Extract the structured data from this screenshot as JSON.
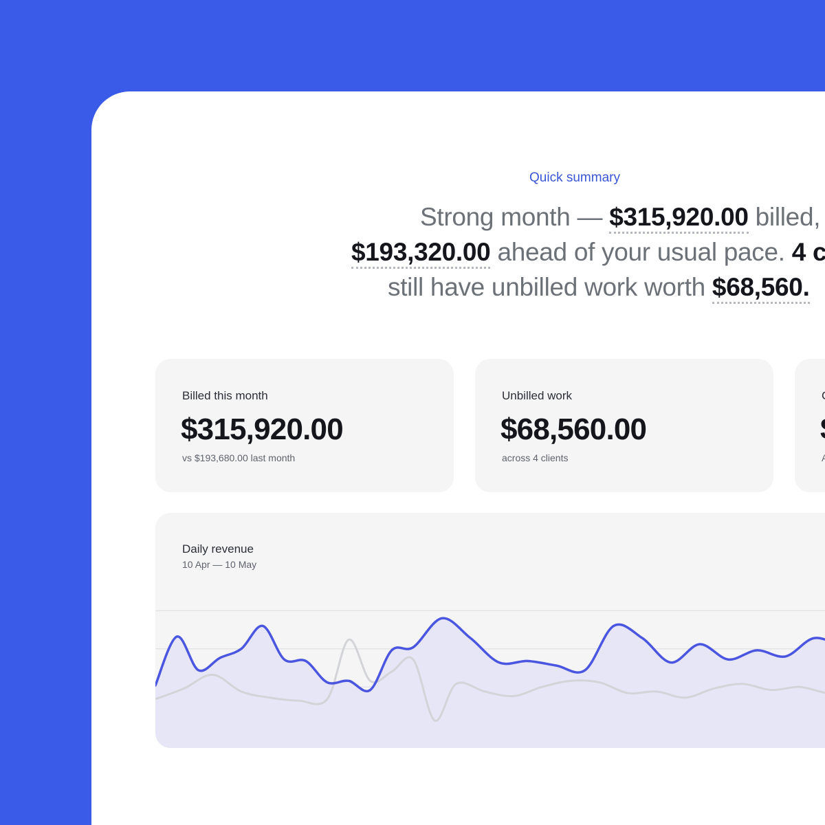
{
  "summary": {
    "kicker": "Quick summary",
    "line1_pre": "Strong month — ",
    "line1_amount": "$315,920.00",
    "line1_post": " billed,",
    "line2_amount": "$193,320.00",
    "line2_mid": " ahead of your usual pace. ",
    "line2_tail": "4 c",
    "line3_pre": "still have unbilled work worth ",
    "line3_amount": "$68,560."
  },
  "cards": [
    {
      "label": "Billed this month",
      "value": "$315,920.00",
      "sub": "vs $193,680.00 last month"
    },
    {
      "label": "Unbilled work",
      "value": "$68,560.00",
      "sub": "across 4 clients"
    },
    {
      "label": "C",
      "value": "$",
      "sub": "A"
    }
  ],
  "colors": {
    "background": "#3a5ae8",
    "accent": "#3a55d6",
    "series_current": "#4a55e0",
    "series_previous": "#d3d4d8"
  },
  "chart": {
    "title": "Daily revenue",
    "range_start": "10 Apr",
    "range_sep": " — ",
    "range_end": "10 May"
  },
  "chart_data": {
    "type": "area",
    "title": "Daily revenue",
    "ylim": [
      0,
      100
    ],
    "grid": true,
    "series": [
      {
        "role": "current",
        "x": [
          0,
          3,
          6,
          9,
          12,
          15,
          18,
          21,
          24,
          27,
          30,
          33,
          36,
          40,
          44,
          48,
          52,
          56,
          60,
          64,
          68,
          72,
          76,
          80,
          84,
          88,
          92,
          96
        ],
        "values": [
          41,
          73,
          51,
          59,
          65,
          80,
          58,
          57,
          43,
          44,
          38,
          64,
          66,
          85,
          72,
          56,
          57,
          54,
          51,
          80,
          72,
          56,
          68,
          58,
          64,
          60,
          72,
          66
        ]
      },
      {
        "role": "previous",
        "x": [
          0,
          4,
          8,
          12,
          16,
          20,
          24,
          27,
          30,
          33,
          36,
          39,
          42,
          46,
          50,
          54,
          58,
          62,
          66,
          70,
          74,
          78,
          82,
          86,
          90,
          94,
          98
        ],
        "values": [
          32,
          39,
          48,
          37,
          33,
          31,
          32,
          71,
          44,
          50,
          58,
          18,
          42,
          37,
          34,
          40,
          44,
          43,
          36,
          37,
          33,
          39,
          42,
          38,
          40,
          36,
          38
        ]
      }
    ]
  }
}
